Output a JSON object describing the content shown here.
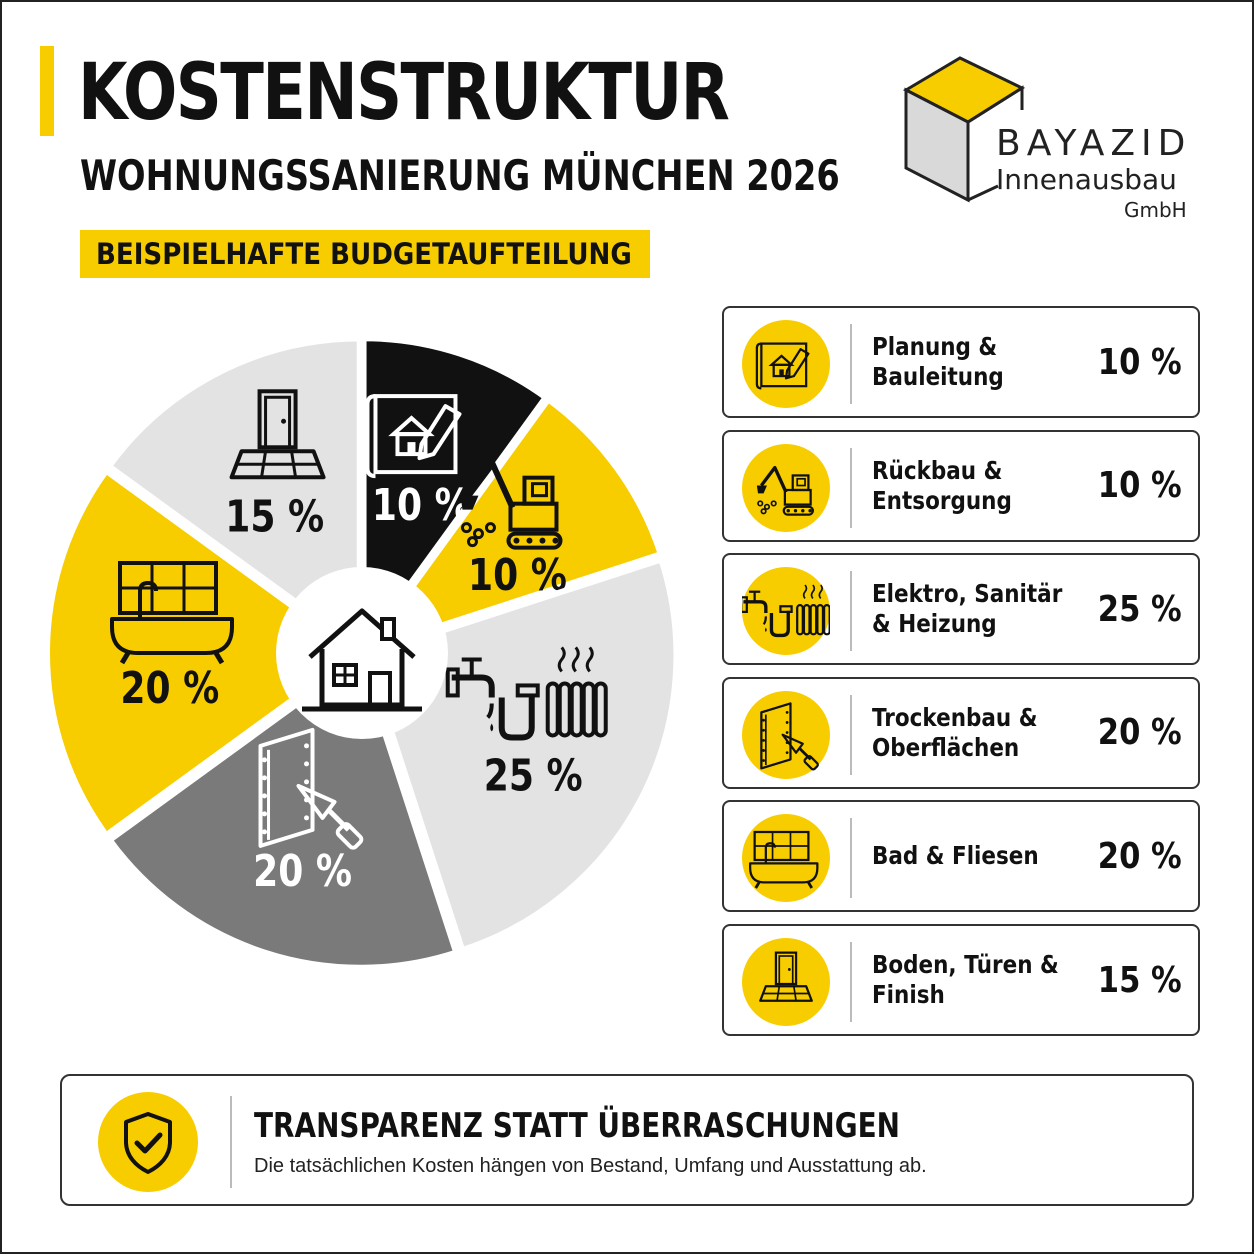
{
  "header": {
    "title": "KOSTENSTRUKTUR",
    "subtitle": "WOHNUNGSSANIERUNG MÜNCHEN 2026",
    "tag": "BEISPIELHAFTE BUDGETAUFTEILUNG"
  },
  "logo": {
    "name": "BAYAZID",
    "sub": "Innenausbau",
    "legal": "GmbH"
  },
  "colors": {
    "accent": "#f7cd00",
    "black": "#111111",
    "light_gray": "#e3e3e3",
    "mid_gray": "#7a7a7a"
  },
  "chart_data": {
    "type": "pie",
    "title": "",
    "slices": [
      {
        "label": "Planung & Bauleitung",
        "value": 10,
        "display": "10 %",
        "color": "#111111",
        "text_color": "#ffffff",
        "icon": "blueprint-icon"
      },
      {
        "label": "Rückbau & Entsorgung",
        "value": 10,
        "display": "10 %",
        "color": "#f7cd00",
        "text_color": "#111111",
        "icon": "excavator-icon"
      },
      {
        "label": "Elektro, Sanitär & Heizung",
        "value": 25,
        "display": "25 %",
        "color": "#e3e3e3",
        "text_color": "#111111",
        "icon": "plumbing-radiator-icon"
      },
      {
        "label": "Trockenbau & Oberflächen",
        "value": 20,
        "display": "20 %",
        "color": "#7a7a7a",
        "text_color": "#ffffff",
        "icon": "drywall-trowel-icon"
      },
      {
        "label": "Bad & Fliesen",
        "value": 20,
        "display": "20 %",
        "color": "#f7cd00",
        "text_color": "#111111",
        "icon": "bathtub-tiles-icon"
      },
      {
        "label": "Boden, Türen & Finish",
        "value": 15,
        "display": "15 %",
        "color": "#e3e3e3",
        "text_color": "#111111",
        "icon": "door-floor-icon"
      }
    ],
    "center_icon": "house-icon",
    "legend_position": "right"
  },
  "legend": [
    {
      "line1": "Planung & Bauleitung",
      "line2": "",
      "pct": "10 %"
    },
    {
      "line1": "Rückbau & Entsorgung",
      "line2": "",
      "pct": "10 %"
    },
    {
      "line1": "Elektro, Sanitär",
      "line2": "& Heizung",
      "pct": "25 %"
    },
    {
      "line1": "Trockenbau &",
      "line2": "Oberflächen",
      "pct": "20 %"
    },
    {
      "line1": "Bad & Fliesen",
      "line2": "",
      "pct": "20 %"
    },
    {
      "line1": "Boden, Türen & Finish",
      "line2": "",
      "pct": "15 %"
    }
  ],
  "footer": {
    "title": "TRANSPARENZ STATT ÜBERRASCHUNGEN",
    "text": "Die tatsächlichen Kosten hängen von Bestand, Umfang und Ausstattung ab.",
    "icon": "shield-check-icon"
  }
}
